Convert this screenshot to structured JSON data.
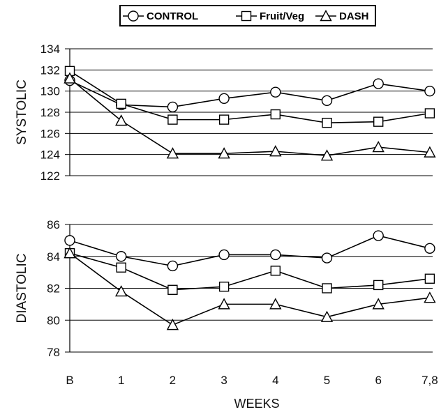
{
  "chart_data": [
    {
      "type": "line",
      "ylabel": "SYSTOLIC",
      "ylim": [
        122,
        134
      ],
      "yticks": [
        "134",
        "132",
        "130",
        "128",
        "126",
        "124",
        "122"
      ],
      "grid": true,
      "series": [
        {
          "name": "CONTROL",
          "marker": "circle",
          "values": [
            131.0,
            128.7,
            128.5,
            129.3,
            129.9,
            129.1,
            130.7,
            130.0
          ]
        },
        {
          "name": "Fruit/Veg",
          "marker": "square",
          "values": [
            131.9,
            128.8,
            127.3,
            127.3,
            127.8,
            127.0,
            127.1,
            127.9
          ]
        },
        {
          "name": "DASH",
          "marker": "triangle",
          "values": [
            131.2,
            127.2,
            124.1,
            124.1,
            124.3,
            123.9,
            124.7,
            124.2
          ]
        }
      ]
    },
    {
      "type": "line",
      "ylabel": "DIASTOLIC",
      "ylim": [
        78,
        86
      ],
      "yticks": [
        "86",
        "84",
        "82",
        "80",
        "78"
      ],
      "grid": true,
      "series": [
        {
          "name": "CONTROL",
          "marker": "circle",
          "values": [
            85.0,
            84.0,
            83.4,
            84.1,
            84.1,
            83.9,
            85.3,
            84.5
          ]
        },
        {
          "name": "Fruit/Veg",
          "marker": "square",
          "values": [
            84.2,
            83.3,
            81.9,
            82.1,
            83.1,
            82.0,
            82.2,
            82.6
          ]
        },
        {
          "name": "DASH",
          "marker": "triangle",
          "values": [
            84.2,
            81.8,
            79.7,
            81.0,
            81.0,
            80.2,
            81.0,
            81.4
          ]
        }
      ]
    }
  ],
  "x_axis": {
    "xlabel": "WEEKS",
    "categories": [
      "B",
      "1",
      "2",
      "3",
      "4",
      "5",
      "6",
      "7,8"
    ]
  },
  "legend": {
    "placement": "top-center",
    "items": [
      {
        "label": "CONTROL",
        "marker": "circle"
      },
      {
        "label": "Fruit/Veg",
        "marker": "square"
      },
      {
        "label": "DASH",
        "marker": "triangle"
      }
    ]
  }
}
